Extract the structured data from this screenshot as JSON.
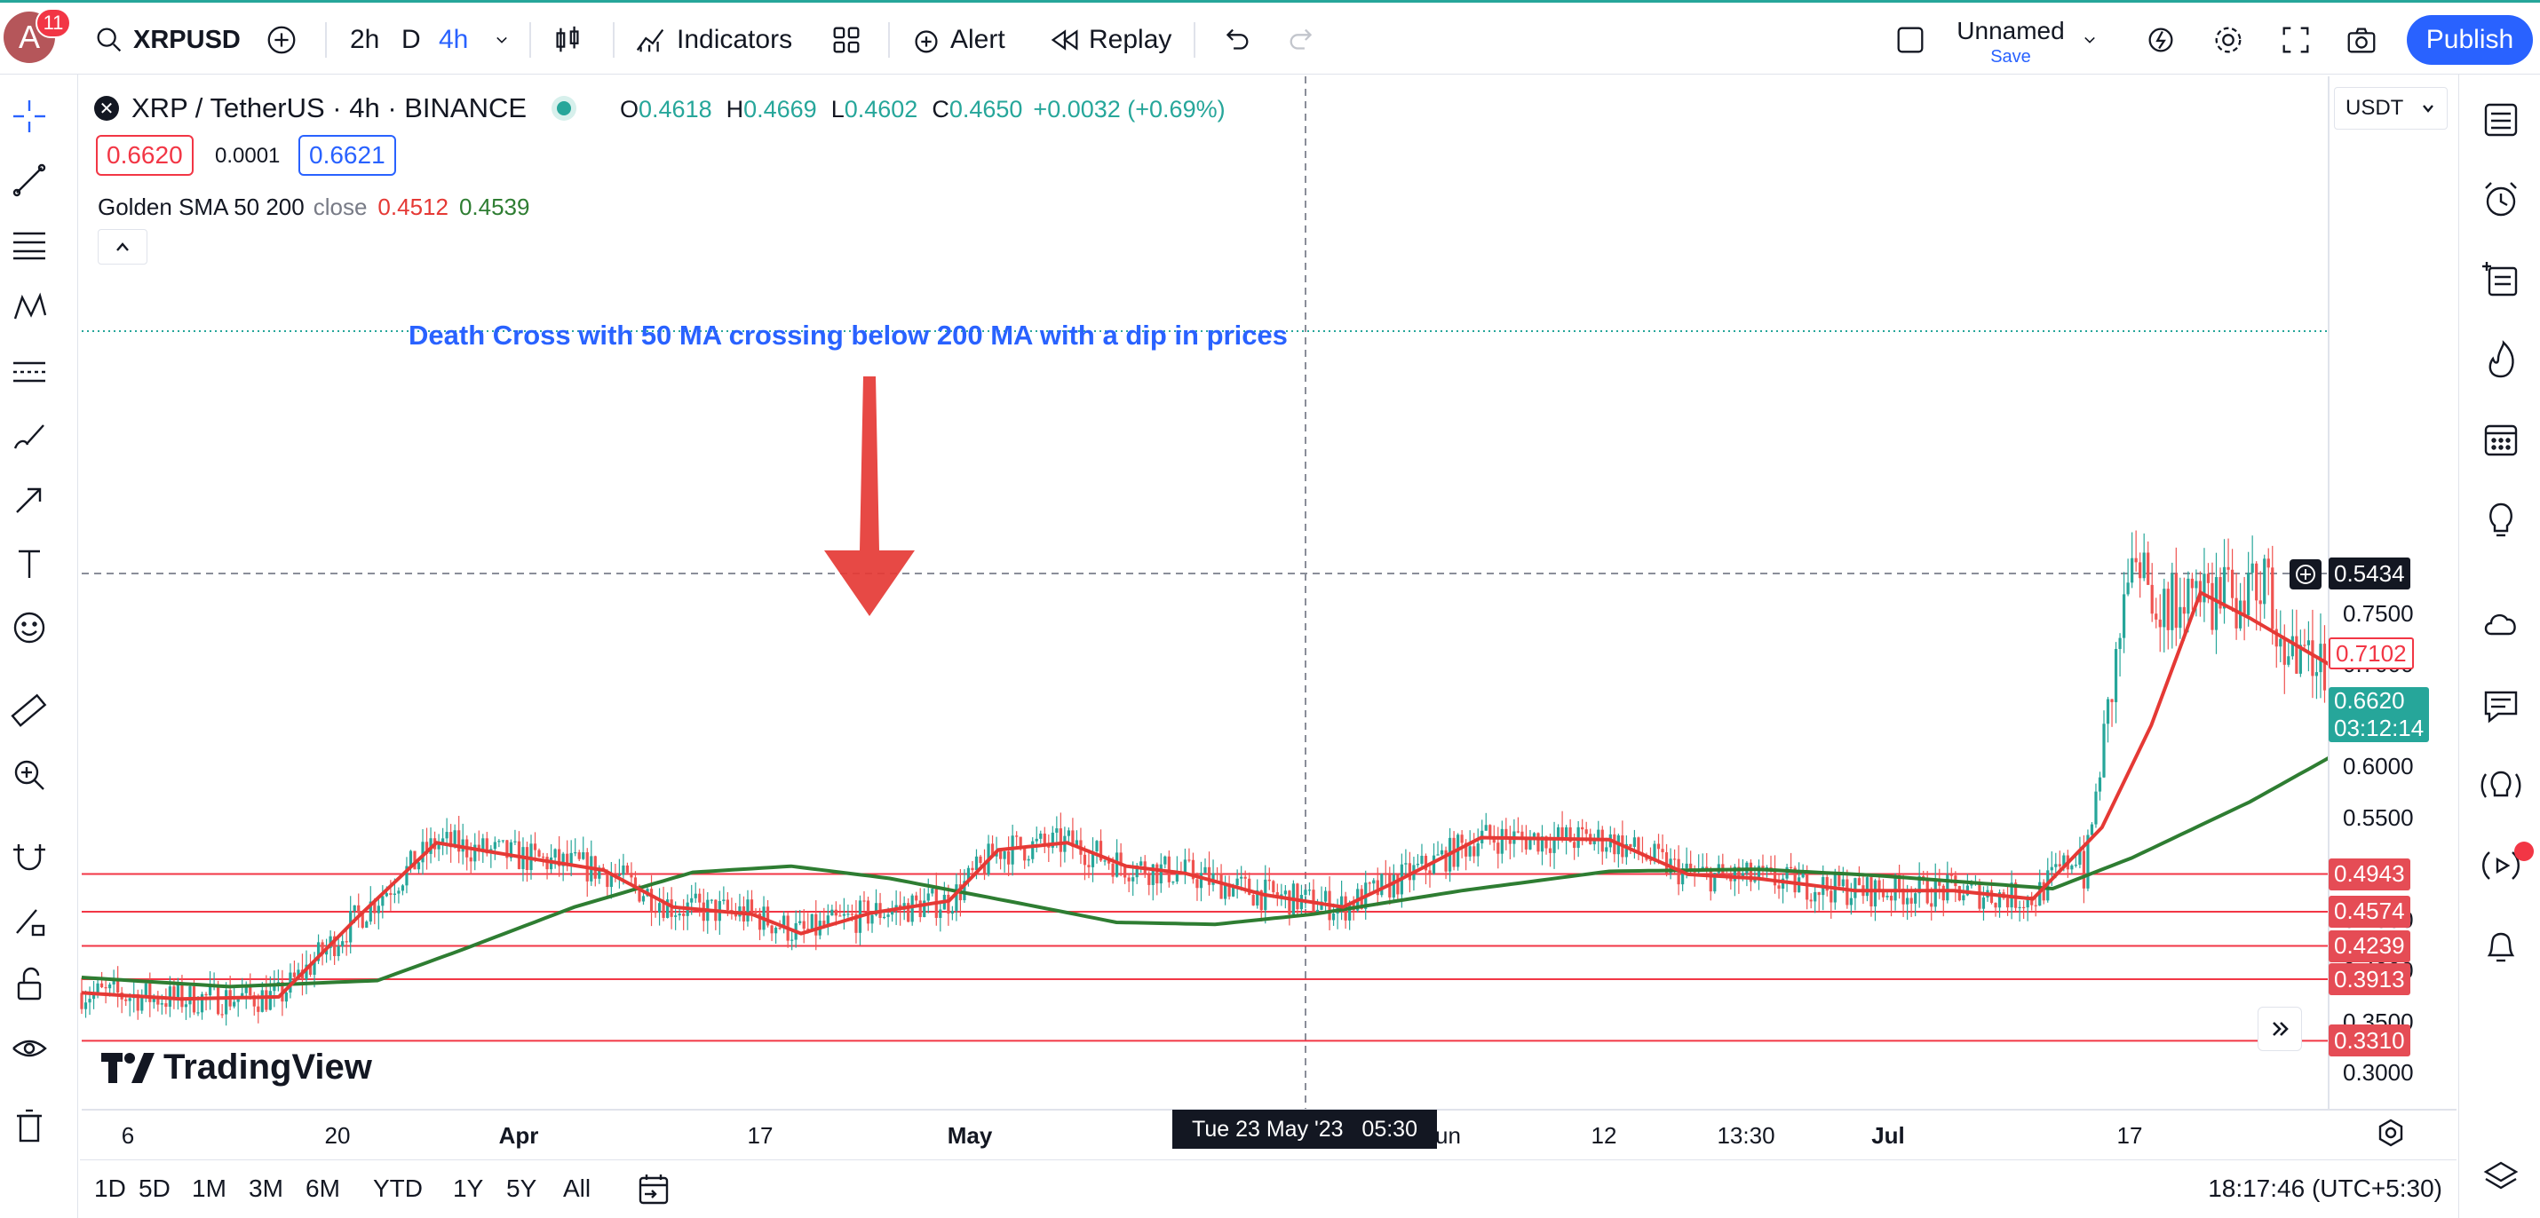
{
  "toolbar": {
    "avatar_letter": "A",
    "notification_count": "11",
    "symbol": "XRPUSD",
    "intervals": [
      "2h",
      "D",
      "4h"
    ],
    "indicators_label": "Indicators",
    "alert_label": "Alert",
    "replay_label": "Replay",
    "layout_name": "Unnamed",
    "save_label": "Save",
    "publish_label": "Publish",
    "active_interval": "4h",
    "accent_color": "#2962ff"
  },
  "legend": {
    "title": "XRP / TetherUS · 4h · BINANCE",
    "o_label": "O",
    "o_value": "0.4618",
    "h_label": "H",
    "h_value": "0.4669",
    "l_label": "L",
    "l_value": "0.4602",
    "c_label": "C",
    "c_value": "0.4650",
    "change": "+0.0032 (+0.69%)",
    "sell_price": "0.6620",
    "spread": "0.0001",
    "buy_price": "0.6621",
    "indicator_name": "Golden SMA 50 200",
    "indicator_source": "close",
    "sma50_value": "0.4512",
    "sma200_value": "0.4539"
  },
  "chart_data": {
    "type": "candlestick",
    "currency": "USDT",
    "annotation": "Death Cross with 50 MA crossing below 200 MA with a dip in prices",
    "watermark": "TradingView",
    "y_ticks": [
      "0.7500",
      "0.7000",
      "0.6000",
      "0.5500",
      "0.4500",
      "0.4000",
      "0.3500",
      "0.3000"
    ],
    "x_ticks": [
      "6",
      "20",
      "Apr",
      "17",
      "May",
      "Jun",
      "12",
      "13:30",
      "Jul",
      "17"
    ],
    "crosshair_time": "Tue 23 May '23   05:30",
    "crosshair_price": "0.5434",
    "current_price": "0.6620",
    "countdown": "03:12:14",
    "last_label_price": "0.7102",
    "horizontal_lines": [
      "0.4943",
      "0.4574",
      "0.4239",
      "0.3913",
      "0.3310"
    ],
    "sma50_color": "#e53935",
    "sma200_color": "#2e7d32",
    "series": [
      {
        "name": "SMA 50",
        "points": [
          [
            0,
            0.378
          ],
          [
            0.1,
            0.372
          ],
          [
            0.2,
            0.374
          ],
          [
            0.28,
            0.452
          ],
          [
            0.36,
            0.525
          ],
          [
            0.44,
            0.512
          ],
          [
            0.53,
            0.498
          ],
          [
            0.6,
            0.462
          ],
          [
            0.68,
            0.455
          ],
          [
            0.73,
            0.436
          ],
          [
            0.8,
            0.456
          ],
          [
            0.88,
            0.468
          ],
          [
            0.93,
            0.518
          ],
          [
            1.0,
            0.525
          ],
          [
            1.06,
            0.502
          ],
          [
            1.12,
            0.495
          ],
          [
            1.2,
            0.474
          ],
          [
            1.28,
            0.462
          ],
          [
            1.33,
            0.485
          ],
          [
            1.42,
            0.53
          ],
          [
            1.55,
            0.528
          ],
          [
            1.63,
            0.494
          ],
          [
            1.7,
            0.49
          ],
          [
            1.8,
            0.478
          ],
          [
            1.9,
            0.478
          ],
          [
            1.98,
            0.47
          ],
          [
            2.05,
            0.54
          ],
          [
            2.1,
            0.64
          ],
          [
            2.15,
            0.77
          ],
          [
            2.2,
            0.745
          ],
          [
            2.28,
            0.7
          ]
        ]
      },
      {
        "name": "SMA 200",
        "points": [
          [
            0,
            0.393
          ],
          [
            0.15,
            0.384
          ],
          [
            0.3,
            0.39
          ],
          [
            0.38,
            0.418
          ],
          [
            0.5,
            0.462
          ],
          [
            0.62,
            0.496
          ],
          [
            0.72,
            0.502
          ],
          [
            0.82,
            0.49
          ],
          [
            0.95,
            0.466
          ],
          [
            1.05,
            0.447
          ],
          [
            1.15,
            0.445
          ],
          [
            1.25,
            0.455
          ],
          [
            1.4,
            0.478
          ],
          [
            1.55,
            0.497
          ],
          [
            1.7,
            0.499
          ],
          [
            1.82,
            0.493
          ],
          [
            2.0,
            0.48
          ],
          [
            2.08,
            0.51
          ],
          [
            2.2,
            0.565
          ],
          [
            2.28,
            0.608
          ]
        ]
      }
    ]
  },
  "bottom": {
    "ranges": [
      "1D",
      "5D",
      "1M",
      "3M",
      "6M",
      "YTD",
      "1Y",
      "5Y",
      "All"
    ],
    "clock": "18:17:46 (UTC+5:30)"
  }
}
